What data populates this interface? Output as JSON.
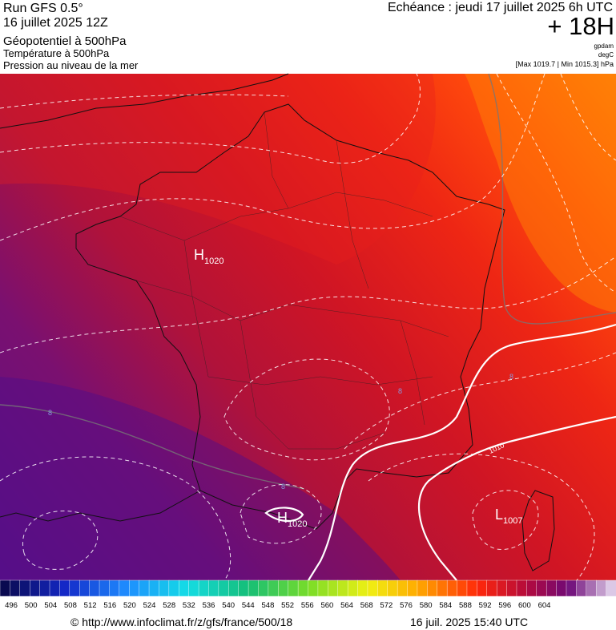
{
  "header": {
    "run": "Run GFS 0.5°",
    "date": "16 juillet 2025 12Z",
    "param1": "Géopotentiel à 500hPa",
    "param2": "Température à 500hPa",
    "param3": "Pression au niveau de la mer",
    "echeance": "Echéance : jeudi 17 juillet 2025 6h UTC",
    "lead": "+ 18H",
    "unit1": "gpdam",
    "unit2": "degC",
    "range": "[Max 1019.7 | Min 1015.3] hPa"
  },
  "map": {
    "centers": [
      {
        "letter": "H",
        "value": "1020"
      },
      {
        "letter": "H",
        "value": "1020"
      },
      {
        "letter": "L",
        "value": "1007"
      }
    ],
    "isobar_label": "1010",
    "temp_labels": [
      "8",
      "8",
      "8",
      "8"
    ]
  },
  "color_scale": {
    "labels": [
      496,
      500,
      504,
      508,
      512,
      516,
      520,
      524,
      528,
      532,
      536,
      540,
      544,
      548,
      552,
      556,
      560,
      564,
      568,
      572,
      576,
      580,
      584,
      588,
      592,
      596,
      600,
      604
    ]
  },
  "footer": {
    "url": "© http://www.infoclimat.fr/z/gfs/france/500/18",
    "generated": "16 juil. 2025 15:40 UTC"
  }
}
